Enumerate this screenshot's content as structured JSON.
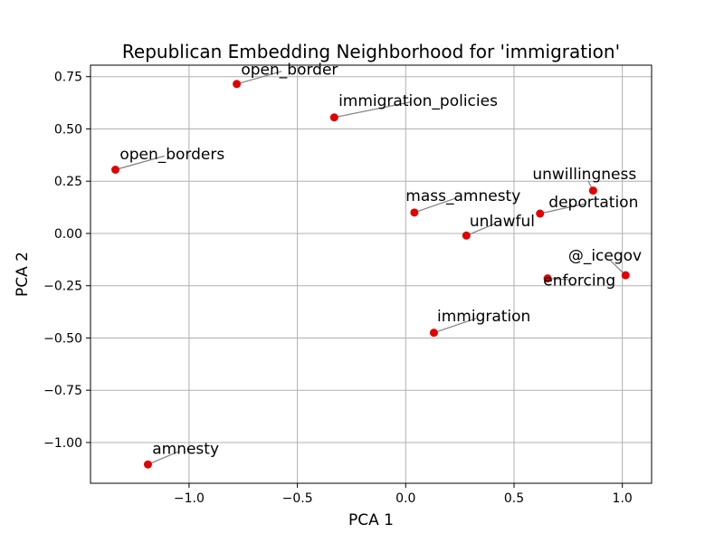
{
  "chart_data": {
    "type": "scatter",
    "title": "Republican Embedding Neighborhood for 'immigration'",
    "xlabel": "PCA 1",
    "ylabel": "PCA 2",
    "xlim": [
      -1.455,
      1.135
    ],
    "ylim": [
      -1.195,
      0.805
    ],
    "grid": true,
    "point_color": "#e00000",
    "x_ticks": [
      {
        "value": -1.0,
        "label": "−1.0"
      },
      {
        "value": -0.5,
        "label": "−0.5"
      },
      {
        "value": 0.0,
        "label": "0.0"
      },
      {
        "value": 0.5,
        "label": "0.5"
      },
      {
        "value": 1.0,
        "label": "1.0"
      }
    ],
    "y_ticks": [
      {
        "value": 0.75,
        "label": "0.75"
      },
      {
        "value": 0.5,
        "label": "0.50"
      },
      {
        "value": 0.25,
        "label": "0.25"
      },
      {
        "value": 0.0,
        "label": "0.00"
      },
      {
        "value": -0.25,
        "label": "−0.25"
      },
      {
        "value": -0.5,
        "label": "−0.50"
      },
      {
        "value": -0.75,
        "label": "−0.75"
      },
      {
        "value": -1.0,
        "label": "−1.00"
      }
    ],
    "points": [
      {
        "label": "open_border",
        "x": -0.78,
        "y": 0.715,
        "label_x": -0.76,
        "label_y": 0.76
      },
      {
        "label": "immigration_policies",
        "x": -0.33,
        "y": 0.555,
        "label_x": -0.31,
        "label_y": 0.61
      },
      {
        "label": "open_borders",
        "x": -1.34,
        "y": 0.305,
        "label_x": -1.32,
        "label_y": 0.355
      },
      {
        "label": "unwillingness",
        "x": 0.865,
        "y": 0.205,
        "label_x": 0.585,
        "label_y": 0.26
      },
      {
        "label": "mass_amnesty",
        "x": 0.04,
        "y": 0.1,
        "label_x": 0.0,
        "label_y": 0.155
      },
      {
        "label": "deportation",
        "x": 0.62,
        "y": 0.095,
        "label_x": 0.66,
        "label_y": 0.125
      },
      {
        "label": "unlawful",
        "x": 0.28,
        "y": -0.01,
        "label_x": 0.295,
        "label_y": 0.035
      },
      {
        "label": "@_icegov",
        "x": 1.015,
        "y": -0.2,
        "label_x": 0.75,
        "label_y": -0.13
      },
      {
        "label": "enforcing",
        "x": 0.655,
        "y": -0.215,
        "label_x": 0.635,
        "label_y": -0.25
      },
      {
        "label": "immigration",
        "x": 0.13,
        "y": -0.475,
        "label_x": 0.145,
        "label_y": -0.42
      },
      {
        "label": "amnesty",
        "x": -1.19,
        "y": -1.105,
        "label_x": -1.17,
        "label_y": -1.055
      }
    ]
  }
}
